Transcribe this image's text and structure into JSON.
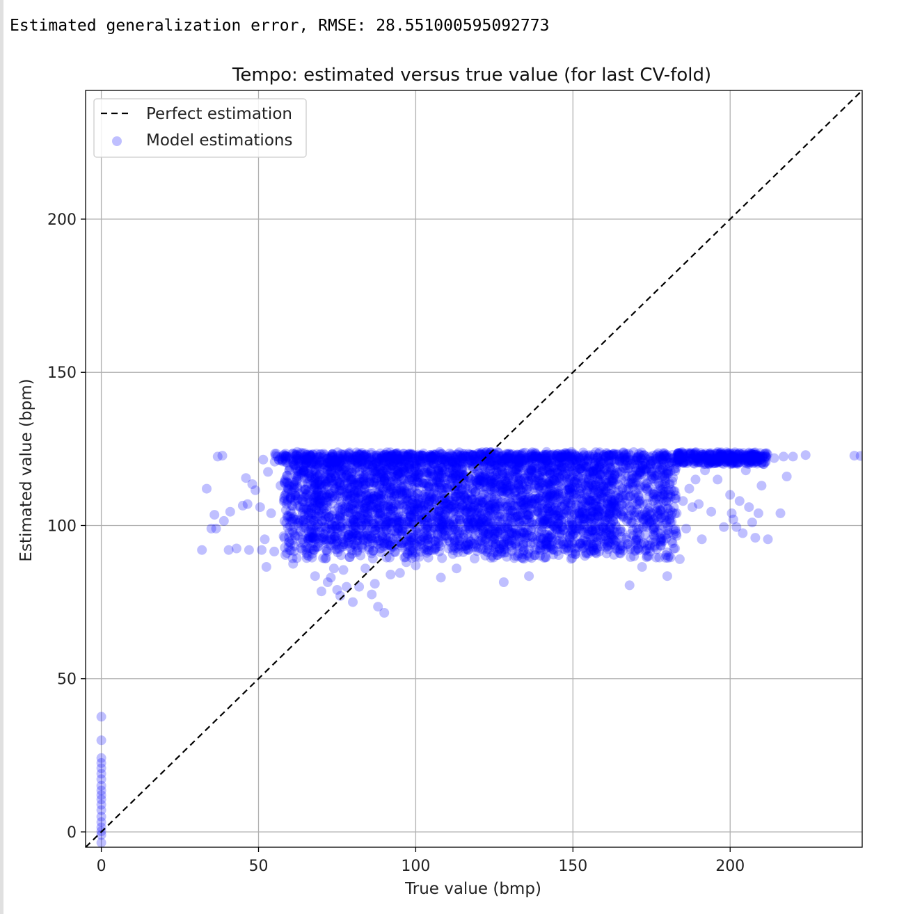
{
  "output": {
    "rmse_line": "Estimated generalization error, RMSE: 28.551000595092773"
  },
  "chart_data": {
    "type": "scatter",
    "title": "Tempo: estimated versus true value (for last CV-fold)",
    "xlabel": "True value (bmp)",
    "ylabel": "Estimated value (bpm)",
    "xlim": [
      -5,
      242
    ],
    "ylim": [
      -5,
      242
    ],
    "xticks": [
      0,
      50,
      100,
      150,
      200
    ],
    "yticks": [
      0,
      50,
      100,
      150,
      200
    ],
    "grid": true,
    "legend": {
      "placement": "upper-left",
      "entries": [
        {
          "label": "Perfect estimation",
          "style": "dashed-line",
          "color": "#000000"
        },
        {
          "label": "Model estimations",
          "style": "marker",
          "color": "#0000ff"
        }
      ]
    },
    "series": [
      {
        "name": "Perfect estimation",
        "type": "line",
        "x": [
          -5,
          242
        ],
        "y": [
          -5,
          242
        ],
        "color": "#000000",
        "dash": true
      },
      {
        "name": "Model estimations",
        "type": "scatter",
        "color": "#0000ff",
        "alpha": 0.25,
        "points": [
          [
            0,
            37.6
          ],
          [
            0,
            29.9
          ],
          [
            0,
            24.1
          ],
          [
            0,
            22.5
          ],
          [
            0,
            20.8
          ],
          [
            0,
            19.0
          ],
          [
            0,
            17.2
          ],
          [
            0,
            15.1
          ],
          [
            0,
            13.5
          ],
          [
            0,
            12.0
          ],
          [
            0,
            10.6
          ],
          [
            0,
            8.9
          ],
          [
            0,
            7.1
          ],
          [
            0,
            5.0
          ],
          [
            0,
            3.2
          ],
          [
            0,
            1.5
          ],
          [
            0,
            0.2
          ],
          [
            0,
            -1.0
          ],
          [
            0,
            -3.5
          ],
          [
            32,
            92
          ],
          [
            33.5,
            112
          ],
          [
            35,
            99
          ],
          [
            36,
            103.5
          ],
          [
            36.5,
            99
          ],
          [
            37,
            122.5
          ],
          [
            38.5,
            122.8
          ],
          [
            39,
            101.5
          ],
          [
            40.5,
            92
          ],
          [
            41,
            104.5
          ],
          [
            43,
            92.5
          ],
          [
            45,
            106.5
          ],
          [
            46,
            115.5
          ],
          [
            46.5,
            107
          ],
          [
            47,
            92
          ],
          [
            48,
            113.5
          ],
          [
            49,
            111.5
          ],
          [
            50.5,
            106
          ],
          [
            51,
            92
          ],
          [
            51.5,
            121.5
          ],
          [
            52,
            95.5
          ],
          [
            52.5,
            86.5
          ],
          [
            53,
            117.5
          ],
          [
            54,
            104
          ],
          [
            55,
            91.5
          ],
          [
            56,
            122.5
          ],
          [
            57,
            113
          ],
          [
            58,
            96.5
          ],
          [
            59,
            91
          ],
          [
            60,
            119
          ],
          [
            61,
            87.5
          ],
          [
            62,
            123
          ],
          [
            63,
            101
          ],
          [
            64,
            92
          ],
          [
            65,
            120
          ],
          [
            66,
            95
          ],
          [
            67,
            89.5
          ],
          [
            68,
            83.5
          ],
          [
            70,
            78.5
          ],
          [
            72,
            81.5
          ],
          [
            73,
            83
          ],
          [
            74,
            86
          ],
          [
            75,
            79
          ],
          [
            76,
            77
          ],
          [
            77,
            85.5
          ],
          [
            78,
            80
          ],
          [
            80,
            75
          ],
          [
            82,
            80
          ],
          [
            84,
            86
          ],
          [
            86,
            77.5
          ],
          [
            87,
            81
          ],
          [
            88,
            73.5
          ],
          [
            90,
            71.5
          ],
          [
            92,
            84
          ],
          [
            95,
            84.5
          ],
          [
            97,
            88
          ],
          [
            100,
            87
          ],
          [
            104,
            89.5
          ],
          [
            108,
            83
          ],
          [
            113,
            86
          ],
          [
            120,
            95
          ],
          [
            128,
            81.5
          ],
          [
            136,
            83.5
          ],
          [
            144,
            92
          ],
          [
            150,
            97
          ],
          [
            153,
            94
          ],
          [
            156,
            106
          ],
          [
            159,
            98
          ],
          [
            160,
            104
          ],
          [
            162,
            97
          ],
          [
            164,
            95
          ],
          [
            165,
            92
          ],
          [
            166,
            103
          ],
          [
            167,
            96
          ],
          [
            168,
            80.5
          ],
          [
            170,
            92
          ],
          [
            171,
            99
          ],
          [
            172,
            86.5
          ],
          [
            173,
            97
          ],
          [
            174,
            90
          ],
          [
            175,
            104
          ],
          [
            176,
            93
          ],
          [
            177,
            101
          ],
          [
            178,
            93.5
          ],
          [
            179,
            110
          ],
          [
            180,
            83.5
          ],
          [
            180.5,
            90
          ],
          [
            181,
            101
          ],
          [
            182,
            97
          ],
          [
            183,
            104
          ],
          [
            184,
            89
          ],
          [
            185,
            108
          ],
          [
            186,
            99
          ],
          [
            187,
            112
          ],
          [
            188,
            106
          ],
          [
            189,
            115
          ],
          [
            190,
            107
          ],
          [
            191,
            95.5
          ],
          [
            192,
            118
          ],
          [
            194,
            104.5
          ],
          [
            196,
            115
          ],
          [
            198,
            99.5
          ],
          [
            200,
            110
          ],
          [
            200.5,
            104
          ],
          [
            201,
            102
          ],
          [
            202,
            99.5
          ],
          [
            203,
            108
          ],
          [
            204,
            97.5
          ],
          [
            205,
            118
          ],
          [
            206,
            106
          ],
          [
            207,
            101
          ],
          [
            208,
            96
          ],
          [
            209,
            104
          ],
          [
            210,
            113
          ],
          [
            212,
            95.5
          ],
          [
            214,
            122
          ],
          [
            216,
            104
          ],
          [
            217,
            122.5
          ],
          [
            218,
            116
          ],
          [
            220,
            122.5
          ],
          [
            224,
            123
          ],
          [
            239.5,
            122.8
          ],
          [
            241.5,
            122.7
          ]
        ],
        "dense_region": {
          "x_range": [
            58,
            183
          ],
          "y_range": [
            89,
            124
          ],
          "tail_x_range": [
            183,
            212
          ],
          "tail_y_range": [
            120,
            124
          ]
        }
      }
    ]
  }
}
